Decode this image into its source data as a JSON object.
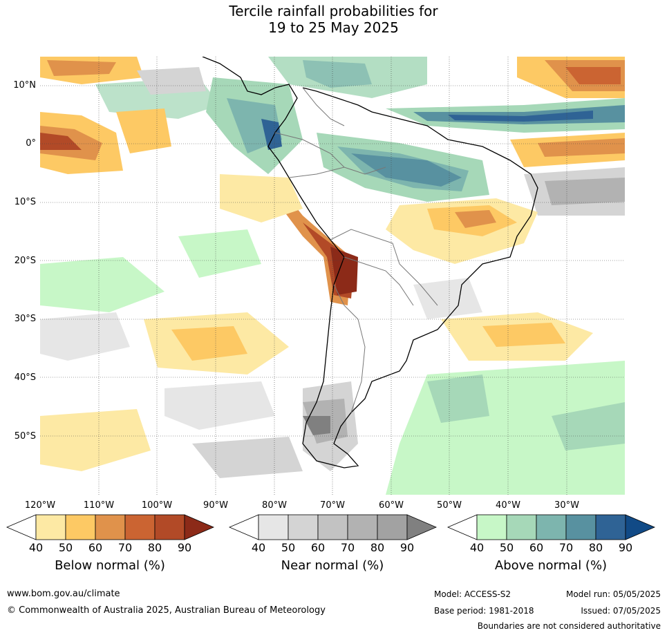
{
  "title_line1": "Tercile rainfall probabilities for",
  "title_line2": "19 to 25 May 2025",
  "map": {
    "lat_labels": [
      "10°N",
      "0°",
      "10°S",
      "20°S",
      "30°S",
      "40°S",
      "50°S"
    ],
    "lon_labels": [
      "120°W",
      "110°W",
      "100°W",
      "90°W",
      "80°W",
      "70°W",
      "60°W",
      "50°W",
      "40°W",
      "30°W"
    ],
    "region": "South America",
    "land_color": "#ffffff",
    "ocean_color": "#ffffff",
    "gridline_style": "dotted"
  },
  "colorbars": [
    {
      "title": "Below normal (%)",
      "ticks": [
        "40",
        "50",
        "60",
        "70",
        "80",
        "90"
      ],
      "colors": [
        "#ffffff",
        "#fde9a4",
        "#fdc964",
        "#e0924b",
        "#cb6432",
        "#b24a27",
        "#8c2a18"
      ]
    },
    {
      "title": "Near normal (%)",
      "ticks": [
        "40",
        "50",
        "60",
        "70",
        "80",
        "90"
      ],
      "colors": [
        "#ffffff",
        "#e6e6e6",
        "#d4d4d4",
        "#c2c2c2",
        "#b2b2b2",
        "#a2a2a2",
        "#808080"
      ]
    },
    {
      "title": "Above normal (%)",
      "ticks": [
        "40",
        "50",
        "60",
        "70",
        "80",
        "90"
      ],
      "colors": [
        "#ffffff",
        "#c7f7c7",
        "#a6d8b8",
        "#7db5ae",
        "#5891a0",
        "#2f6395",
        "#114a86"
      ]
    }
  ],
  "footer": {
    "url": "www.bom.gov.au/climate",
    "copyright": "© Commonwealth of Australia 2025, Australian Bureau of Meteorology",
    "model": "Model: ACCESS-S2",
    "base_period": "Base period: 1981-2018",
    "model_run": "Model run: 05/05/2025",
    "issued": "Issued: 07/05/2025",
    "boundaries_note": "Boundaries are not considered authoritative"
  }
}
